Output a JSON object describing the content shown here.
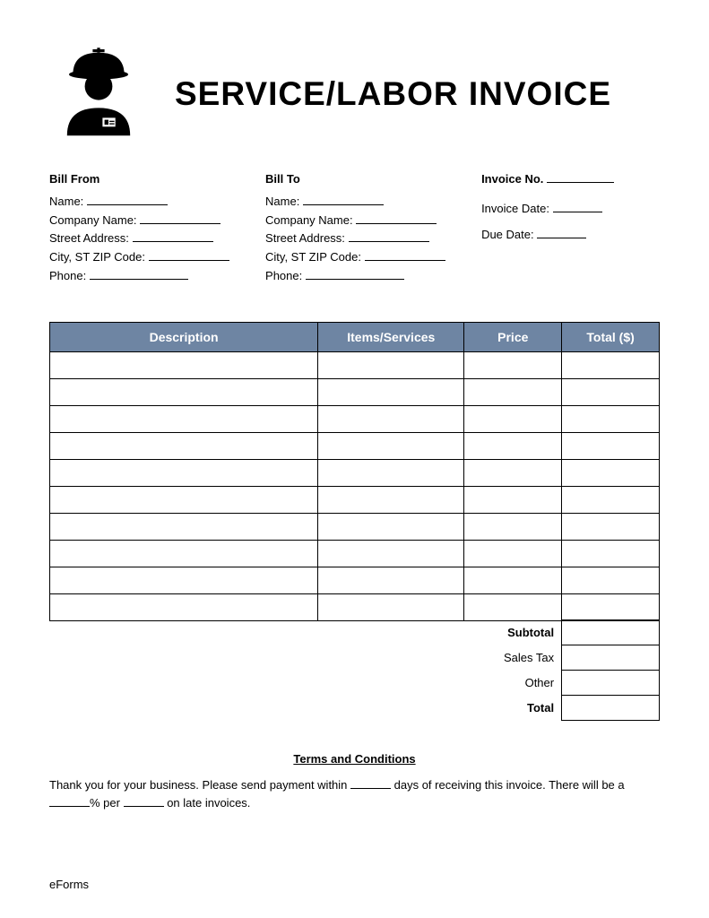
{
  "title": "SERVICE/LABOR INVOICE",
  "bill_from": {
    "heading": "Bill From",
    "name_label": "Name:",
    "company_label": "Company Name:",
    "street_label": "Street Address:",
    "city_label": "City, ST ZIP Code:",
    "phone_label": "Phone:"
  },
  "bill_to": {
    "heading": "Bill To",
    "name_label": "Name:",
    "company_label": "Company Name:",
    "street_label": "Street Address:",
    "city_label": "City, ST ZIP Code:",
    "phone_label": "Phone:"
  },
  "meta": {
    "invoice_no_label": "Invoice No.",
    "invoice_date_label": "Invoice Date:",
    "due_date_label": "Due Date:"
  },
  "table": {
    "header_bg": "#6e85a3",
    "header_fg": "#ffffff",
    "columns": [
      "Description",
      "Items/Services",
      "Price",
      "Total ($)"
    ],
    "row_count": 10
  },
  "summary": {
    "subtotal_label": "Subtotal",
    "salestax_label": "Sales Tax",
    "other_label": "Other",
    "total_label": "Total"
  },
  "terms": {
    "heading": "Terms and Conditions",
    "line1_a": "Thank you for your business. Please send payment within ",
    "line1_b": " days of receiving this invoice. There will be a ",
    "line1_c": "% per ",
    "line1_d": " on late invoices."
  },
  "footer": "eForms"
}
